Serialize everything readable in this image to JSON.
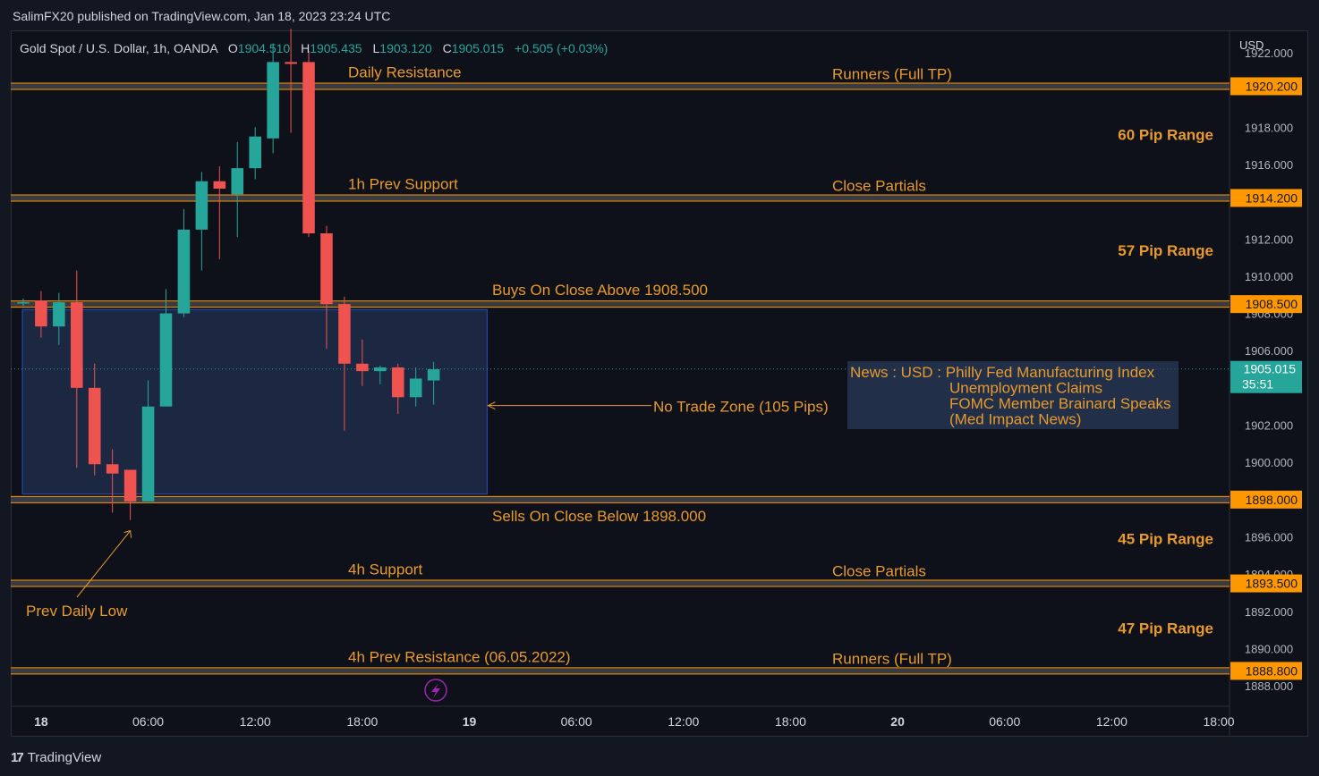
{
  "header": {
    "published": "SalimFX20 published on TradingView.com, Jan 18, 2023 23:24 UTC"
  },
  "footer": {
    "brand": "TradingView"
  },
  "colors": {
    "background": "#131722",
    "bull": "#26a69a",
    "bear": "#ef5350",
    "level": "#ff9800",
    "annotation": "#e89a2c",
    "zone_fill": "#1e2d4a",
    "zone_border": "#2962ff"
  },
  "chart_data": {
    "type": "candlestick",
    "symbol_line": {
      "name": "Gold Spot / U.S. Dollar, 1h, OANDA",
      "o_label": "O",
      "o": "1904.510",
      "h_label": "H",
      "h": "1905.435",
      "l_label": "L",
      "l": "1903.120",
      "c_label": "C",
      "c": "1905.015",
      "change": "+0.505 (+0.03%)"
    },
    "y_axis": {
      "currency": "USD",
      "ylim": [
        1886.9,
        1923.2
      ],
      "ticks": [
        "1888.000",
        "1890.000",
        "1892.000",
        "1894.000",
        "1896.000",
        "1900.000",
        "1902.000",
        "1906.000",
        "1908.000",
        "1910.000",
        "1912.000",
        "1916.000",
        "1918.000",
        "1922.000"
      ],
      "tick_values": [
        1888,
        1890,
        1892,
        1894,
        1896,
        1900,
        1902,
        1906,
        1908,
        1910,
        1912,
        1916,
        1918,
        1922
      ]
    },
    "x_axis": {
      "ticks": [
        "18",
        "06:00",
        "12:00",
        "18:00",
        "19",
        "06:00",
        "12:00",
        "18:00",
        "20",
        "06:00",
        "12:00",
        "18:00"
      ],
      "tick_hours": [
        0,
        6,
        12,
        18,
        24,
        30,
        36,
        42,
        48,
        54,
        60,
        66
      ],
      "xlim": [
        -1.7,
        66.6
      ]
    },
    "candles": [
      {
        "t": -1,
        "o": 1908.6,
        "h": 1908.8,
        "l": 1908.4,
        "c": 1908.6
      },
      {
        "t": 0,
        "o": 1908.7,
        "h": 1909.2,
        "l": 1906.7,
        "c": 1907.3
      },
      {
        "t": 1,
        "o": 1907.3,
        "h": 1909.1,
        "l": 1906.3,
        "c": 1908.6
      },
      {
        "t": 2,
        "o": 1908.6,
        "h": 1910.3,
        "l": 1899.7,
        "c": 1904.0
      },
      {
        "t": 3,
        "o": 1904.0,
        "h": 1905.3,
        "l": 1899.3,
        "c": 1899.9
      },
      {
        "t": 4,
        "o": 1899.9,
        "h": 1900.7,
        "l": 1897.3,
        "c": 1899.4
      },
      {
        "t": 5,
        "o": 1899.6,
        "h": 1899.6,
        "l": 1896.9,
        "c": 1897.9
      },
      {
        "t": 6,
        "o": 1897.9,
        "h": 1904.4,
        "l": 1897.9,
        "c": 1903.0
      },
      {
        "t": 7,
        "o": 1903.0,
        "h": 1909.3,
        "l": 1903.0,
        "c": 1908.0
      },
      {
        "t": 8,
        "o": 1908.0,
        "h": 1913.6,
        "l": 1907.8,
        "c": 1912.5
      },
      {
        "t": 9,
        "o": 1912.5,
        "h": 1915.6,
        "l": 1910.3,
        "c": 1915.1
      },
      {
        "t": 10,
        "o": 1915.1,
        "h": 1915.9,
        "l": 1910.9,
        "c": 1914.7
      },
      {
        "t": 11,
        "o": 1914.4,
        "h": 1917.2,
        "l": 1912.1,
        "c": 1915.8
      },
      {
        "t": 12,
        "o": 1915.8,
        "h": 1918.0,
        "l": 1915.2,
        "c": 1917.5
      },
      {
        "t": 13,
        "o": 1917.4,
        "h": 1922.5,
        "l": 1916.6,
        "c": 1921.5
      },
      {
        "t": 14,
        "o": 1921.5,
        "h": 1923.3,
        "l": 1917.7,
        "c": 1921.4
      },
      {
        "t": 15,
        "o": 1921.5,
        "h": 1922.1,
        "l": 1912.1,
        "c": 1912.3
      },
      {
        "t": 16,
        "o": 1912.3,
        "h": 1912.7,
        "l": 1906.1,
        "c": 1908.5
      },
      {
        "t": 17,
        "o": 1908.5,
        "h": 1908.9,
        "l": 1901.7,
        "c": 1905.3
      },
      {
        "t": 18,
        "o": 1905.3,
        "h": 1906.6,
        "l": 1904.1,
        "c": 1904.9
      },
      {
        "t": 19,
        "o": 1904.9,
        "h": 1905.2,
        "l": 1904.2,
        "c": 1905.1
      },
      {
        "t": 20,
        "o": 1905.1,
        "h": 1905.3,
        "l": 1902.6,
        "c": 1903.5
      },
      {
        "t": 21,
        "o": 1903.5,
        "h": 1905.1,
        "l": 1903.0,
        "c": 1904.5
      },
      {
        "t": 22,
        "o": 1904.4,
        "h": 1905.4,
        "l": 1903.1,
        "c": 1905.0
      }
    ],
    "levels": [
      {
        "price": 1920.2,
        "price_label": "1920.200",
        "left_label": "Daily Resistance",
        "mid_label": "Runners (Full TP)"
      },
      {
        "price": 1914.2,
        "price_label": "1914.200",
        "left_label": "1h Prev Support",
        "mid_label": "Close Partials"
      },
      {
        "price": 1908.5,
        "price_label": "1908.500",
        "left_label": "Buys On Close Above 1908.500",
        "mid_label": ""
      },
      {
        "price": 1898.0,
        "price_label": "1898.000",
        "left_label": "Sells On Close Below 1898.000",
        "mid_label": ""
      },
      {
        "price": 1893.5,
        "price_label": "1893.500",
        "left_label": "4h Support",
        "mid_label": "Close Partials"
      },
      {
        "price": 1888.8,
        "price_label": "1888.800",
        "left_label": "4h Prev Resistance (06.05.2022)",
        "mid_label": "Runners (Full TP)"
      }
    ],
    "range_labels": [
      {
        "text": "60 Pip Range",
        "price": 1917.6
      },
      {
        "text": "57 Pip Range",
        "price": 1911.4
      },
      {
        "text": "45 Pip Range",
        "price": 1895.9
      },
      {
        "text": "47 Pip Range",
        "price": 1891.1
      }
    ],
    "current_price": {
      "value": 1905.015,
      "label": "1905.015",
      "countdown": "35:51"
    },
    "no_trade_zone": {
      "label": "No Trade Zone (105 Pips)",
      "top": 1908.2,
      "bottom": 1898.3,
      "t_start": -1,
      "t_end": 25
    },
    "prev_daily_low": {
      "label": "Prev Daily Low",
      "price": 1897.0,
      "t": 5
    },
    "news_box": {
      "lines": [
        "News : USD : Philly Fed Manufacturing Index",
        "Unemployment Claims",
        "FOMC Member Brainard Speaks",
        "(Med Impact News)"
      ]
    }
  }
}
